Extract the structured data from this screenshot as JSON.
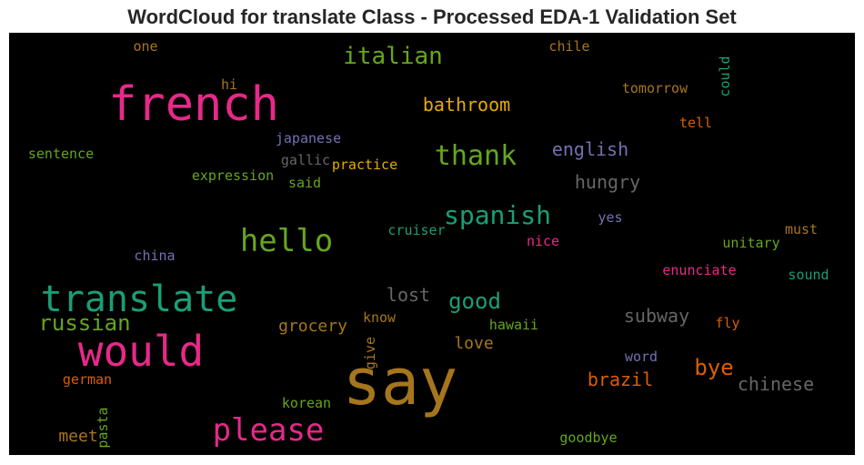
{
  "chart_data": {
    "type": "wordcloud",
    "title": "WordCloud for translate Class - Processed EDA-1 Validation Set",
    "background": "#000000",
    "colormap": "Dark2",
    "words": [
      {
        "text": "say",
        "color": "#a6761d"
      },
      {
        "text": "french",
        "color": "#e7298a"
      },
      {
        "text": "would",
        "color": "#e7298a"
      },
      {
        "text": "translate",
        "color": "#1b9e77"
      },
      {
        "text": "hello",
        "color": "#66a61e"
      },
      {
        "text": "please",
        "color": "#e7298a"
      },
      {
        "text": "thank",
        "color": "#66a61e"
      },
      {
        "text": "spanish",
        "color": "#1b9e77"
      },
      {
        "text": "italian",
        "color": "#66a61e"
      },
      {
        "text": "russian",
        "color": "#66a61e"
      },
      {
        "text": "good",
        "color": "#1b9e77"
      },
      {
        "text": "bye",
        "color": "#d95f02"
      },
      {
        "text": "bathroom",
        "color": "#e6ab02"
      },
      {
        "text": "english",
        "color": "#7570b3"
      },
      {
        "text": "hungry",
        "color": "#666666"
      },
      {
        "text": "lost",
        "color": "#666666"
      },
      {
        "text": "subway",
        "color": "#666666"
      },
      {
        "text": "brazil",
        "color": "#d95f02"
      },
      {
        "text": "chinese",
        "color": "#666666"
      },
      {
        "text": "grocery",
        "color": "#a6761d"
      },
      {
        "text": "love",
        "color": "#a6761d"
      },
      {
        "text": "meet",
        "color": "#a6761d"
      },
      {
        "text": "tomorrow",
        "color": "#a6761d"
      },
      {
        "text": "could",
        "color": "#1b9e77"
      },
      {
        "text": "tell",
        "color": "#d95f02"
      },
      {
        "text": "chile",
        "color": "#a6761d"
      },
      {
        "text": "one",
        "color": "#a6761d"
      },
      {
        "text": "hi",
        "color": "#a6761d"
      },
      {
        "text": "sentence",
        "color": "#66a61e"
      },
      {
        "text": "japanese",
        "color": "#7570b3"
      },
      {
        "text": "gallic",
        "color": "#666666"
      },
      {
        "text": "practice",
        "color": "#e6ab02"
      },
      {
        "text": "expression",
        "color": "#66a61e"
      },
      {
        "text": "said",
        "color": "#66a61e"
      },
      {
        "text": "cruiser",
        "color": "#1b9e77"
      },
      {
        "text": "yes",
        "color": "#7570b3"
      },
      {
        "text": "nice",
        "color": "#e7298a"
      },
      {
        "text": "must",
        "color": "#a6761d"
      },
      {
        "text": "unitary",
        "color": "#66a61e"
      },
      {
        "text": "china",
        "color": "#7570b3"
      },
      {
        "text": "enunciate",
        "color": "#e7298a"
      },
      {
        "text": "sound",
        "color": "#1b9e77"
      },
      {
        "text": "know",
        "color": "#a6761d"
      },
      {
        "text": "hawaii",
        "color": "#66a61e"
      },
      {
        "text": "fly",
        "color": "#d95f02"
      },
      {
        "text": "give",
        "color": "#a6761d"
      },
      {
        "text": "word",
        "color": "#7570b3"
      },
      {
        "text": "german",
        "color": "#d95f02"
      },
      {
        "text": "pasta",
        "color": "#66a61e"
      },
      {
        "text": "korean",
        "color": "#66a61e"
      },
      {
        "text": "goodbye",
        "color": "#66a61e"
      }
    ]
  }
}
